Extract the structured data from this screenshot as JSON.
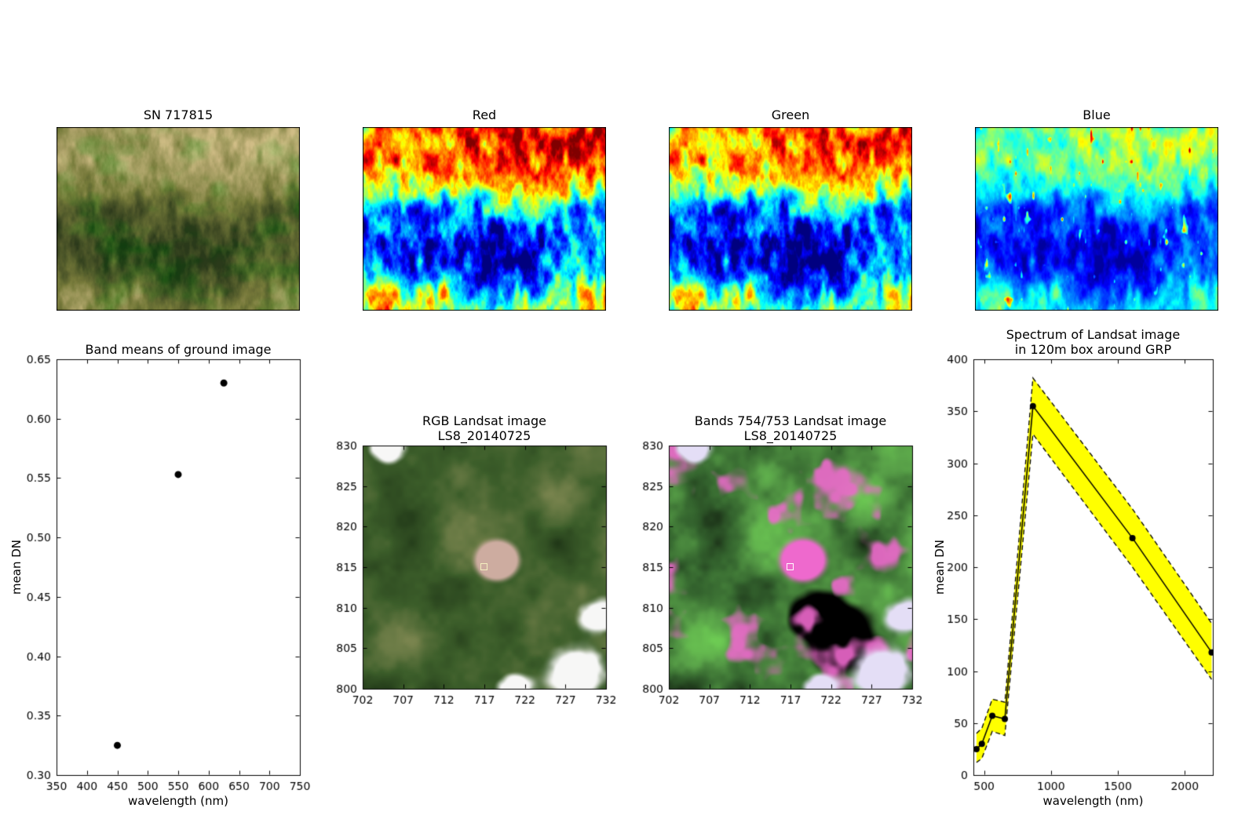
{
  "figure": {
    "background_color": "#ffffff",
    "text_color": "#000000"
  },
  "panels": {
    "ground_photo": {
      "title": "SN 717815"
    },
    "red_band": {
      "title": "Red"
    },
    "green_band": {
      "title": "Green"
    },
    "blue_band": {
      "title": "Blue"
    },
    "band_means": {
      "title": "Band means of ground image",
      "xlabel": "wavelength (nm)",
      "ylabel": "mean DN"
    },
    "rgb_landsat": {
      "title_line1": "RGB Landsat image",
      "title_line2": "LS8_20140725"
    },
    "false_color": {
      "title_line1": "Bands 754/753 Landsat image",
      "title_line2": "LS8_20140725"
    },
    "spectrum": {
      "title_line1": "Spectrum of Landsat image",
      "title_line2": "in 120m box around GRP",
      "xlabel": "wavelength (nm)",
      "ylabel": "mean DN"
    }
  },
  "chart_data": [
    {
      "id": "band_means",
      "type": "scatter",
      "title": "Band means of ground image",
      "xlabel": "wavelength (nm)",
      "ylabel": "mean DN",
      "x": [
        450,
        550,
        625
      ],
      "y": [
        0.325,
        0.553,
        0.63
      ],
      "xlim": [
        350,
        750
      ],
      "ylim": [
        0.3,
        0.65
      ],
      "xticks": [
        350,
        400,
        450,
        500,
        550,
        600,
        650,
        700,
        750
      ],
      "yticks": [
        "0.30",
        "0.35",
        "0.40",
        "0.45",
        "0.50",
        "0.55",
        "0.60",
        "0.65"
      ],
      "marker": "black-filled-circle",
      "grid": false
    },
    {
      "id": "rgb_landsat",
      "type": "image",
      "title": "RGB Landsat image LS8_20140725",
      "xlim": [
        702,
        732
      ],
      "ylim": [
        800,
        830
      ],
      "xticks": [
        702,
        707,
        712,
        717,
        722,
        727,
        732
      ],
      "yticks": [
        800,
        805,
        810,
        815,
        820,
        825,
        830
      ],
      "grp_marker": [
        717,
        815
      ]
    },
    {
      "id": "false_color",
      "type": "image",
      "title": "Bands 754/753 Landsat image LS8_20140725",
      "xlim": [
        702,
        732
      ],
      "ylim": [
        800,
        830
      ],
      "xticks": [
        702,
        707,
        712,
        717,
        722,
        727,
        732
      ],
      "yticks": [
        800,
        805,
        810,
        815,
        820,
        825,
        830
      ],
      "grp_marker": [
        717,
        815
      ]
    },
    {
      "id": "spectrum",
      "type": "line",
      "title": "Spectrum of Landsat image in 120m box around GRP",
      "xlabel": "wavelength (nm)",
      "ylabel": "mean DN",
      "x": [
        443,
        483,
        561,
        655,
        865,
        1609,
        2201
      ],
      "y": [
        25,
        30,
        57,
        54,
        355,
        228,
        118
      ],
      "band_upper": [
        40,
        45,
        73,
        70,
        382,
        256,
        146
      ],
      "band_lower": [
        12,
        16,
        42,
        38,
        328,
        200,
        92
      ],
      "xlim": [
        420,
        2210
      ],
      "ylim": [
        0,
        400
      ],
      "xticks": [
        500,
        1000,
        1500,
        2000
      ],
      "yticks": [
        0,
        50,
        100,
        150,
        200,
        250,
        300,
        350,
        400
      ],
      "line_color": "#000000",
      "band_color": "#ffff00",
      "band_edge_style": "dashed",
      "grid": false
    },
    {
      "id": "ground_photo",
      "type": "image",
      "title": "SN 717815"
    },
    {
      "id": "red_band",
      "type": "image",
      "title": "Red",
      "colormap": "jet"
    },
    {
      "id": "green_band",
      "type": "image",
      "title": "Green",
      "colormap": "jet"
    },
    {
      "id": "blue_band",
      "type": "image",
      "title": "Blue",
      "colormap": "jet"
    }
  ]
}
